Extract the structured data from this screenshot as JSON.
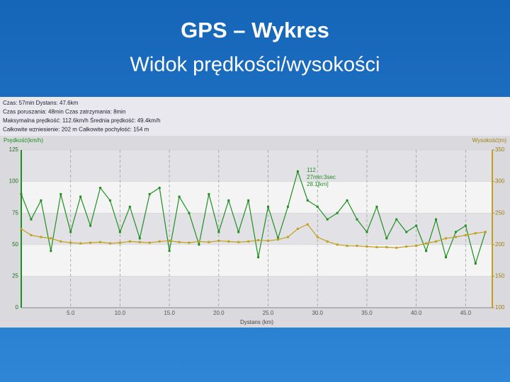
{
  "slide": {
    "title": "GPS – Wykres",
    "subtitle": "Widok prędkości/wysokości"
  },
  "chart_data": {
    "type": "line",
    "info_lines": [
      "Czas: 57min  Dystans: 47.6km",
      "Czas poruszania: 48min  Czas zatrzymania: 8min",
      "Maksymalna prędkość: 112.6km/h  Średnia prędkość: 49.4km/h",
      "Całkowite wzniesienie: 202 m  Całkowite pochyłość: 154 m"
    ],
    "y_label": "Prędkość(km/h)",
    "y2_label": "Wysokość(m)",
    "x_label": "Dystans (km)",
    "annotation": [
      "112",
      "27min:3sec",
      "28.1[km]"
    ],
    "x": [
      0,
      1,
      2,
      3,
      4,
      5,
      6,
      7,
      8,
      9,
      10,
      11,
      12,
      13,
      14,
      15,
      16,
      17,
      18,
      19,
      20,
      21,
      22,
      23,
      24,
      25,
      26,
      27,
      28,
      29,
      30,
      31,
      32,
      33,
      34,
      35,
      36,
      37,
      38,
      39,
      40,
      41,
      42,
      43,
      44,
      45,
      46,
      47
    ],
    "series": [
      {
        "name": "Prędkość",
        "color": "#1f8f1f",
        "values": [
          90,
          70,
          85,
          45,
          90,
          60,
          88,
          65,
          95,
          85,
          60,
          80,
          55,
          90,
          95,
          45,
          88,
          75,
          50,
          90,
          60,
          85,
          60,
          85,
          40,
          80,
          55,
          80,
          108,
          85,
          80,
          70,
          75,
          85,
          70,
          60,
          80,
          55,
          70,
          60,
          65,
          45,
          70,
          40,
          60,
          65,
          35,
          60
        ]
      },
      {
        "name": "Wysokość",
        "color": "#c0a020",
        "axis": "y2",
        "values": [
          225,
          215,
          212,
          210,
          205,
          203,
          202,
          203,
          204,
          202,
          203,
          205,
          204,
          203,
          205,
          206,
          204,
          203,
          205,
          204,
          206,
          205,
          204,
          205,
          207,
          206,
          208,
          212,
          225,
          232,
          212,
          205,
          200,
          198,
          198,
          197,
          196,
          196,
          195,
          197,
          198,
          202,
          205,
          210,
          212,
          215,
          218,
          220
        ]
      }
    ],
    "xlim": [
      0,
      47.7
    ],
    "xticks": [
      {
        "value": 5,
        "label": "5.0"
      },
      {
        "value": 10,
        "label": "10.0"
      },
      {
        "value": 15,
        "label": "15.0"
      },
      {
        "value": 20,
        "label": "20.0"
      },
      {
        "value": 25,
        "label": "25.0"
      },
      {
        "value": 30,
        "label": "30.0"
      },
      {
        "value": 35,
        "label": "35.0"
      },
      {
        "value": 40,
        "label": "40.0"
      },
      {
        "value": 45,
        "label": "45.0"
      }
    ],
    "ylim": [
      0,
      125
    ],
    "yticks": [
      0,
      25,
      50,
      75,
      100,
      125
    ],
    "y2lim": [
      100,
      350
    ],
    "y2ticks": [
      100,
      150,
      200,
      250,
      300,
      350
    ],
    "grid": true
  }
}
